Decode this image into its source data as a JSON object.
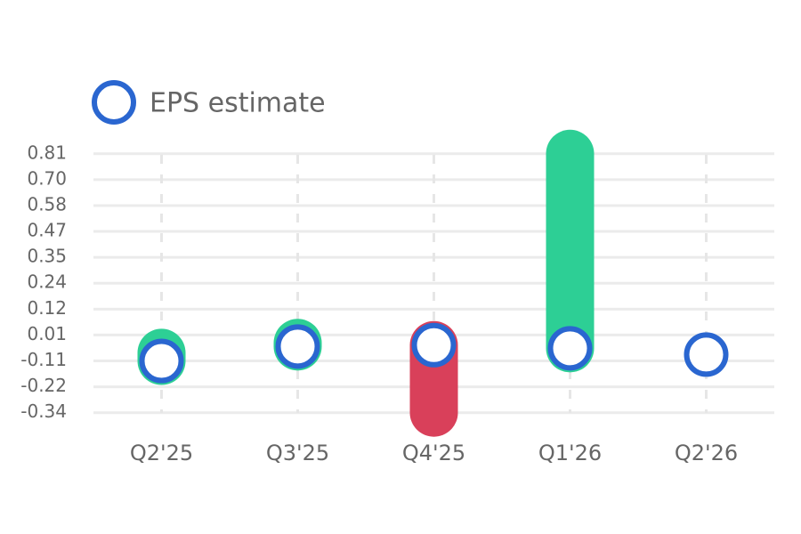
{
  "chart_data": {
    "type": "eps",
    "categories": [
      "Q2'25",
      "Q3'25",
      "Q4'25",
      "Q1'26",
      "Q2'26"
    ],
    "series": [
      {
        "name": "EPS estimate",
        "color": "#2a66d0",
        "values": [
          -0.11,
          -0.046,
          -0.04,
          -0.054,
          -0.082
        ]
      }
    ],
    "actual": {
      "values": [
        -0.074,
        -0.03,
        -0.34,
        0.81,
        null
      ],
      "beat_color": "#2dcf95",
      "miss_color": "#d9405a"
    },
    "ylim": [
      -0.44,
      0.9
    ],
    "yticks": [
      {
        "value": -0.34,
        "label": "-0.34"
      },
      {
        "value": -0.225,
        "label": "-0.22"
      },
      {
        "value": -0.11,
        "label": "-0.11"
      },
      {
        "value": 0.005,
        "label": "0.01"
      },
      {
        "value": 0.12,
        "label": "0.12"
      },
      {
        "value": 0.235,
        "label": "0.24"
      },
      {
        "value": 0.35,
        "label": "0.35"
      },
      {
        "value": 0.465,
        "label": "0.47"
      },
      {
        "value": 0.58,
        "label": "0.58"
      },
      {
        "value": 0.695,
        "label": "0.70"
      },
      {
        "value": 0.81,
        "label": "0.81"
      }
    ],
    "grid": true
  }
}
